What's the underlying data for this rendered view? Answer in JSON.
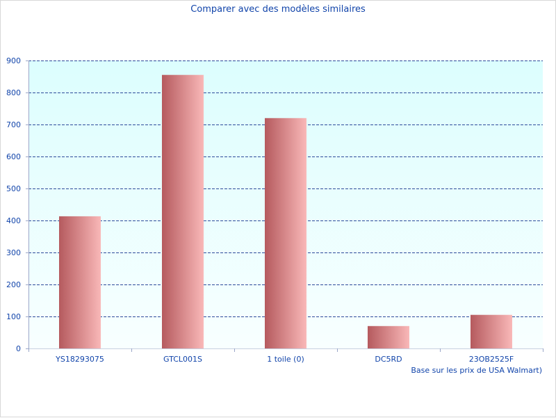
{
  "chart_data": {
    "type": "bar",
    "title": "Comparer avec des modèles similaires",
    "categories": [
      "YS18293075",
      "GTCL001S",
      "1 toile (0)",
      "DC5RD",
      "23OB2525F"
    ],
    "values": [
      413,
      855,
      720,
      70,
      105
    ],
    "ylim": [
      0,
      900
    ],
    "yticks": [
      0,
      100,
      200,
      300,
      400,
      500,
      600,
      700,
      800,
      900
    ],
    "xlabel": "",
    "ylabel": "",
    "note": "Base sur les prix de USA Walmart)",
    "grid": true,
    "legend": "none",
    "colors": {
      "bar_dark": "#b55a5e",
      "bar_light": "#f9b8b8",
      "plot_top": "#dcfefe",
      "plot_bottom": "#f8ffff",
      "grid": "#2d4a9a",
      "text": "#1144aa"
    }
  }
}
